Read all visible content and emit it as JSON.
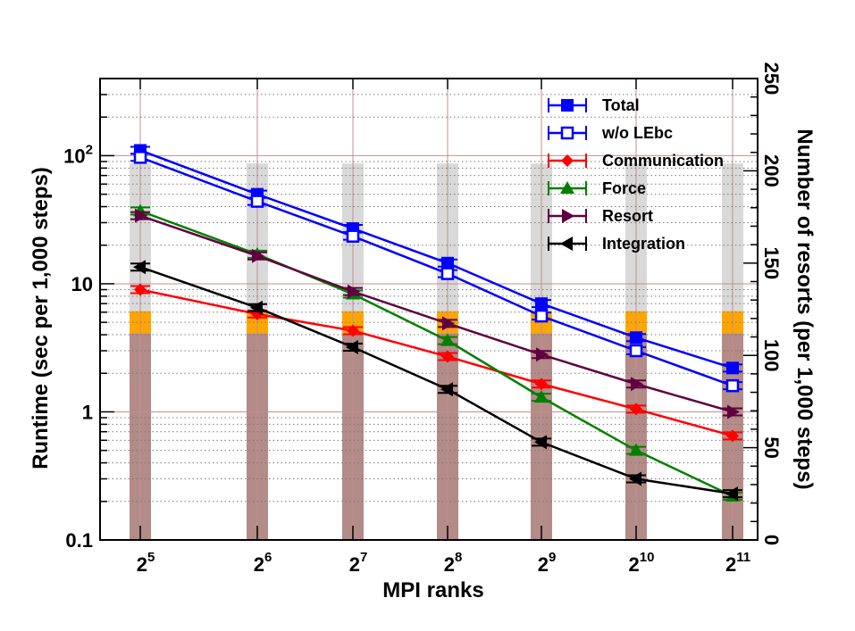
{
  "chart_data": {
    "type": "line",
    "xlabel": "MPI ranks",
    "ylabel_left": "Runtime (sec per 1,000 steps)",
    "ylabel_right": "Number of resorts (per 1,000 steps)",
    "x_scale": "log2",
    "x": [
      32,
      64,
      128,
      256,
      512,
      1024,
      2048
    ],
    "x_tick_labels": [
      {
        "base": "2",
        "exp": "5"
      },
      {
        "base": "2",
        "exp": "6"
      },
      {
        "base": "2",
        "exp": "7"
      },
      {
        "base": "2",
        "exp": "8"
      },
      {
        "base": "2",
        "exp": "9"
      },
      {
        "base": "2",
        "exp": "10"
      },
      {
        "base": "2",
        "exp": "11"
      }
    ],
    "y_left_scale": "log",
    "y_left_range": [
      0.1,
      400
    ],
    "y_left_ticks": [
      {
        "value": 0.1,
        "label": "0.1"
      },
      {
        "value": 1,
        "label": "1"
      },
      {
        "value": 10,
        "label": "10"
      },
      {
        "value": 100,
        "base": "10",
        "exp": "2"
      }
    ],
    "y_right_range": [
      0,
      250
    ],
    "y_right_ticks": [
      "0",
      "50",
      "100",
      "150",
      "200",
      "250"
    ],
    "grid": true,
    "legend_position": "top-right",
    "series": [
      {
        "name": "Total",
        "color": "#0000ff",
        "marker": "filled-square",
        "values": [
          110,
          50,
          27,
          14.5,
          7,
          3.8,
          2.2
        ]
      },
      {
        "name": "w/o LEbc",
        "color": "#0000ff",
        "marker": "open-square",
        "values": [
          97,
          44,
          23.5,
          12,
          5.6,
          3,
          1.6
        ]
      },
      {
        "name": "Communication",
        "color": "#ff0000",
        "marker": "diamond",
        "values": [
          9,
          5.8,
          4.3,
          2.7,
          1.65,
          1.05,
          0.65
        ]
      },
      {
        "name": "Force",
        "color": "#008000",
        "marker": "triangle-up",
        "values": [
          37,
          17,
          8.3,
          3.6,
          1.3,
          0.5,
          0.22
        ]
      },
      {
        "name": "Resort",
        "color": "#600040",
        "marker": "triangle-right",
        "values": [
          34,
          16.5,
          8.7,
          4.9,
          2.8,
          1.65,
          1.0
        ]
      },
      {
        "name": "Integration",
        "color": "#000000",
        "marker": "triangle-left",
        "values": [
          13.5,
          6.5,
          3.2,
          1.5,
          0.58,
          0.3,
          0.23
        ]
      }
    ],
    "resort_bars": {
      "note_colors": {
        "bottom": "#b38b87",
        "middle": "#ffa500",
        "top": "#d9d9d9"
      },
      "stacks": [
        [
          112,
          12,
          80
        ],
        [
          112,
          12,
          80
        ],
        [
          112,
          12,
          80
        ],
        [
          112,
          12,
          80
        ],
        [
          112,
          12,
          80
        ],
        [
          112,
          12,
          80
        ],
        [
          112,
          12,
          80
        ]
      ]
    }
  }
}
